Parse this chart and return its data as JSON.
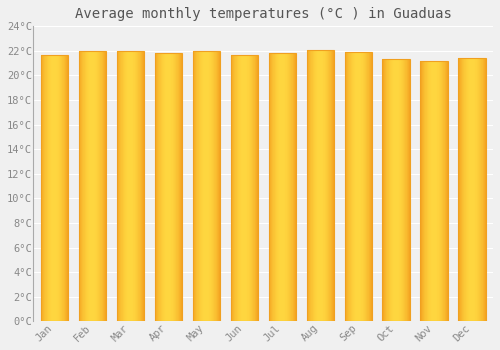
{
  "title": "Average monthly temperatures (°C ) in Guaduas",
  "months": [
    "Jan",
    "Feb",
    "Mar",
    "Apr",
    "May",
    "Jun",
    "Jul",
    "Aug",
    "Sep",
    "Oct",
    "Nov",
    "Dec"
  ],
  "values": [
    21.7,
    22.0,
    22.0,
    21.8,
    22.0,
    21.7,
    21.8,
    22.1,
    21.9,
    21.3,
    21.2,
    21.4
  ],
  "ylim": [
    0,
    24
  ],
  "yticks": [
    0,
    2,
    4,
    6,
    8,
    10,
    12,
    14,
    16,
    18,
    20,
    22,
    24
  ],
  "bar_color_center": "#FFD740",
  "bar_color_edge": "#F5A623",
  "bar_color_bottom": "#F0A020",
  "background_color": "#F0F0F0",
  "plot_bg_color": "#F0F0F0",
  "grid_color": "#FFFFFF",
  "title_fontsize": 10,
  "tick_fontsize": 7.5,
  "tick_color": "#888888",
  "font_family": "monospace"
}
